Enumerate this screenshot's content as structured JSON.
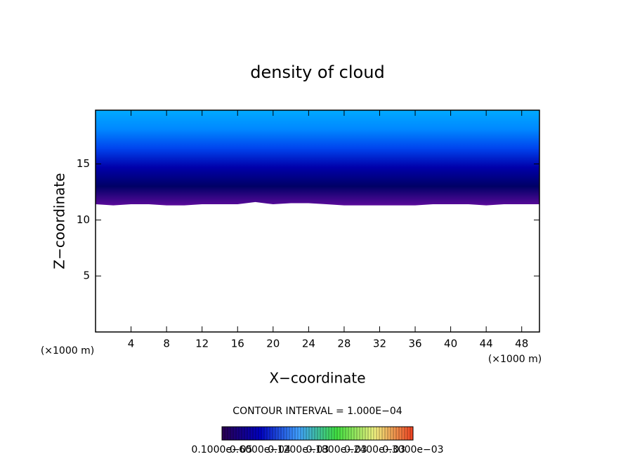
{
  "chart_data": {
    "type": "contour",
    "title": "density of cloud",
    "xlabel": "X−coordinate",
    "ylabel": "Z−coordinate",
    "xlabel_unit": "(×1000 m)",
    "ylabel_unit": "(×1000 m)",
    "xlim": [
      0,
      50
    ],
    "ylim": [
      0,
      19.8
    ],
    "xticks": [
      4,
      8,
      12,
      16,
      20,
      24,
      28,
      32,
      36,
      40,
      44,
      48
    ],
    "yticks": [
      5,
      10,
      15
    ],
    "field": {
      "x": [
        0,
        2,
        4,
        6,
        8,
        10,
        12,
        14,
        16,
        18,
        20,
        22,
        24,
        26,
        28,
        30,
        32,
        34,
        36,
        38,
        40,
        42,
        44,
        46,
        48,
        50
      ],
      "base": [
        11.4,
        11.3,
        11.4,
        11.4,
        11.3,
        11.3,
        11.4,
        11.4,
        11.4,
        11.6,
        11.4,
        11.5,
        11.5,
        11.4,
        11.3,
        11.3,
        11.3,
        11.3,
        11.3,
        11.4,
        11.4,
        11.4,
        11.3,
        11.4,
        11.4,
        11.4
      ],
      "colors": [
        "#00aaff",
        "#0088ff",
        "#0044ee",
        "#0000aa",
        "#000066",
        "#5a0a9a"
      ]
    },
    "contour_interval": "CONTOUR INTERVAL = 1.000E−04",
    "colorbar": {
      "labels": [
        "0.1000e−05",
        "0.6000e−04",
        "0.1200e−03",
        "0.1800e−03",
        "0.2400e−03",
        "0.3000e−03"
      ],
      "colors": [
        "#2a0050",
        "#0000c0",
        "#40a0ff",
        "#40e040",
        "#f0f080",
        "#f04020"
      ]
    }
  }
}
